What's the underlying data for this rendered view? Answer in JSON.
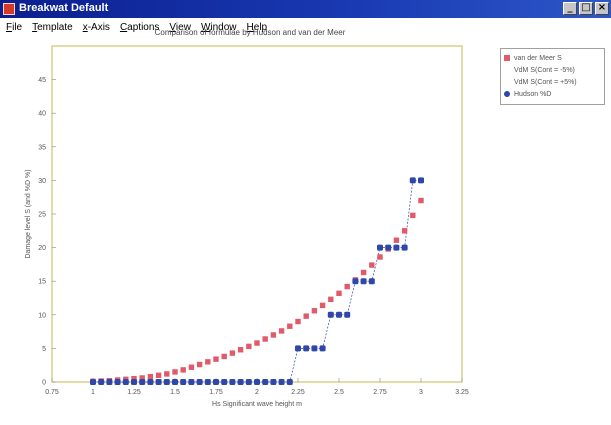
{
  "window": {
    "title": "Breakwat Default",
    "minimize_label": "_",
    "maximize_label": "□",
    "close_label": "×"
  },
  "menubar": {
    "items": [
      "File",
      "Template",
      "x-Axis",
      "Captions",
      "View",
      "Window",
      "Help"
    ]
  },
  "colors": {
    "van_der_meer": "#e05a6a",
    "hudson": "#2f47a8",
    "titlebar": "#0b1f8f",
    "axis_frame": "#c8b850"
  },
  "chart_data": {
    "type": "scatter",
    "title": "Comparison of formulae by Hudson and van der Meer",
    "xlabel": "Hs Significant wave height m",
    "ylabel": "Damage level S (and %D %)",
    "xlim": [
      0.75,
      3.25
    ],
    "ylim": [
      0,
      50
    ],
    "x_ticks": [
      0.75,
      1,
      1.25,
      1.5,
      1.75,
      2,
      2.25,
      2.5,
      2.75,
      3,
      3.25
    ],
    "x_tick_labels": [
      "0.75",
      "1",
      "1.25",
      "1.5",
      "1.75",
      "2",
      "2.25",
      "2.5",
      "2.75",
      "3",
      "3.25"
    ],
    "y_ticks": [
      0,
      5,
      10,
      15,
      20,
      25,
      30,
      35,
      40,
      45
    ],
    "y_tick_labels": [
      "0",
      "5",
      "10",
      "15",
      "20",
      "25",
      "30",
      "35",
      "40",
      "45"
    ],
    "grid": false,
    "legend_position": "right",
    "legend": [
      "van der Meer S",
      "VdM S(Cont = -5%)",
      "VdM S(Cont = +5%)",
      "Hudson %D"
    ],
    "series": [
      {
        "name": "van der Meer S",
        "marker": "square",
        "color": "#e05a6a",
        "x": [
          1.0,
          1.05,
          1.1,
          1.15,
          1.2,
          1.25,
          1.3,
          1.35,
          1.4,
          1.45,
          1.5,
          1.55,
          1.6,
          1.65,
          1.7,
          1.75,
          1.8,
          1.85,
          1.9,
          1.95,
          2.0,
          2.05,
          2.1,
          2.15,
          2.2,
          2.25,
          2.3,
          2.35,
          2.4,
          2.45,
          2.5,
          2.55,
          2.6,
          2.65,
          2.7,
          2.75,
          2.8,
          2.85,
          2.9,
          2.95,
          3.0
        ],
        "y": [
          0.1,
          0.15,
          0.2,
          0.3,
          0.4,
          0.5,
          0.6,
          0.8,
          1.0,
          1.2,
          1.5,
          1.8,
          2.2,
          2.6,
          3.0,
          3.4,
          3.8,
          4.3,
          4.8,
          5.3,
          5.8,
          6.4,
          7.0,
          7.6,
          8.3,
          9.0,
          9.8,
          10.6,
          11.4,
          12.3,
          13.2,
          14.2,
          15.2,
          16.3,
          17.4,
          18.6,
          19.8,
          21.1,
          22.5,
          24.8,
          27.0
        ]
      },
      {
        "name": "Hudson %D",
        "marker": "circle",
        "color": "#2f47a8",
        "connect": "step",
        "x": [
          1.0,
          1.05,
          1.1,
          1.15,
          1.2,
          1.25,
          1.3,
          1.35,
          1.4,
          1.45,
          1.5,
          1.55,
          1.6,
          1.65,
          1.7,
          1.75,
          1.8,
          1.85,
          1.9,
          1.95,
          2.0,
          2.05,
          2.1,
          2.15,
          2.2,
          2.25,
          2.3,
          2.35,
          2.4,
          2.45,
          2.5,
          2.55,
          2.6,
          2.65,
          2.7,
          2.75,
          2.8,
          2.85,
          2.9,
          2.95,
          3.0
        ],
        "y": [
          0,
          0,
          0,
          0,
          0,
          0,
          0,
          0,
          0,
          0,
          0,
          0,
          0,
          0,
          0,
          0,
          0,
          0,
          0,
          0,
          0,
          0,
          0,
          0,
          0,
          5,
          5,
          5,
          5,
          10,
          10,
          10,
          15,
          15,
          15,
          20,
          20,
          20,
          20,
          30,
          30
        ]
      }
    ]
  }
}
